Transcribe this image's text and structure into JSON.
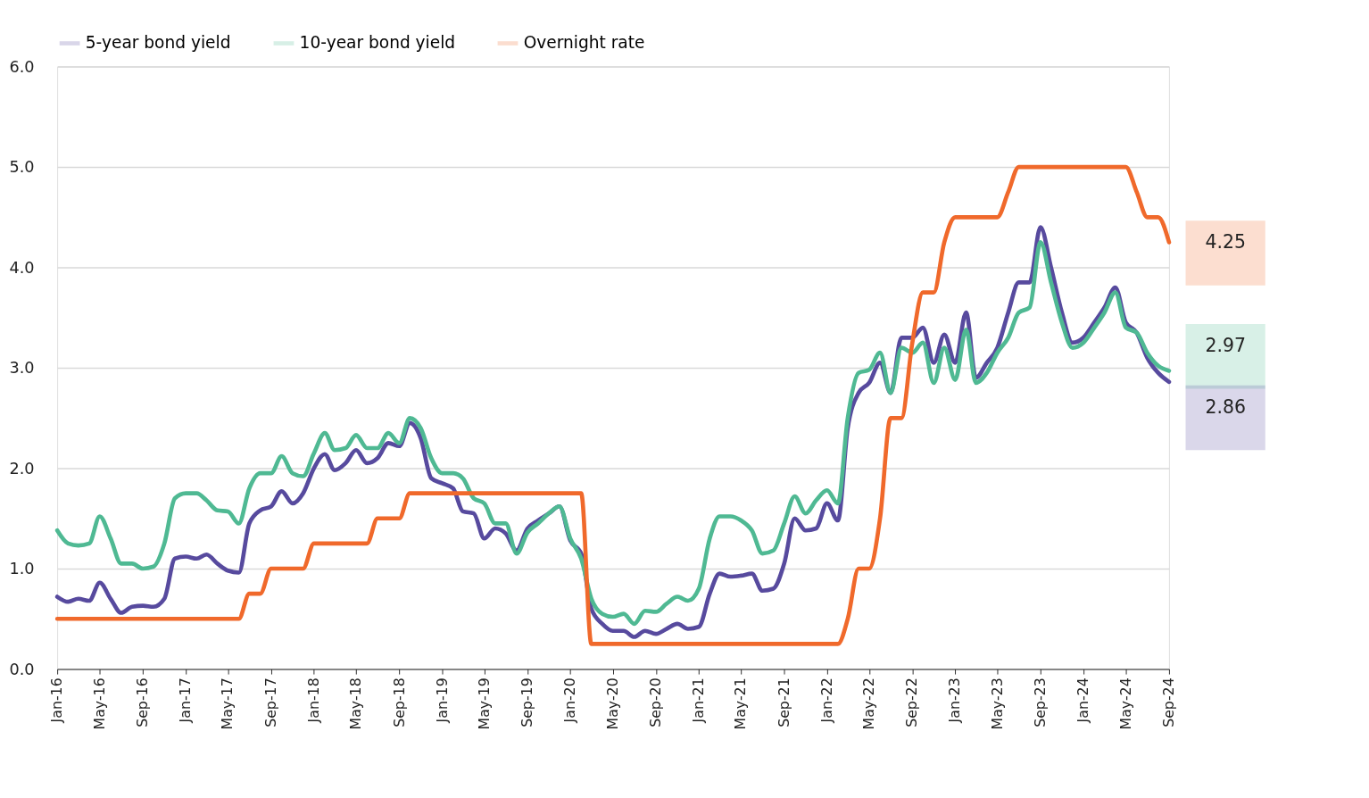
{
  "chart_data": {
    "type": "line",
    "x": [
      "2016-01",
      "2016-02",
      "2016-03",
      "2016-04",
      "2016-05",
      "2016-06",
      "2016-07",
      "2016-08",
      "2016-09",
      "2016-10",
      "2016-11",
      "2016-12",
      "2017-01",
      "2017-02",
      "2017-03",
      "2017-04",
      "2017-05",
      "2017-06",
      "2017-07",
      "2017-08",
      "2017-09",
      "2017-10",
      "2017-11",
      "2017-12",
      "2018-01",
      "2018-02",
      "2018-03",
      "2018-04",
      "2018-05",
      "2018-06",
      "2018-07",
      "2018-08",
      "2018-09",
      "2018-10",
      "2018-11",
      "2018-12",
      "2019-01",
      "2019-02",
      "2019-03",
      "2019-04",
      "2019-05",
      "2019-06",
      "2019-07",
      "2019-08",
      "2019-09",
      "2019-10",
      "2019-11",
      "2019-12",
      "2020-01",
      "2020-02",
      "2020-03",
      "2020-04",
      "2020-05",
      "2020-06",
      "2020-07",
      "2020-08",
      "2020-09",
      "2020-10",
      "2020-11",
      "2020-12",
      "2021-01",
      "2021-02",
      "2021-03",
      "2021-04",
      "2021-05",
      "2021-06",
      "2021-07",
      "2021-08",
      "2021-09",
      "2021-10",
      "2021-11",
      "2021-12",
      "2022-01",
      "2022-02",
      "2022-03",
      "2022-04",
      "2022-05",
      "2022-06",
      "2022-07",
      "2022-08",
      "2022-09",
      "2022-10",
      "2022-11",
      "2022-12",
      "2023-01",
      "2023-02",
      "2023-03",
      "2023-04",
      "2023-05",
      "2023-06",
      "2023-07",
      "2023-08",
      "2023-09",
      "2023-10",
      "2023-11",
      "2023-12",
      "2024-01",
      "2024-02",
      "2024-03",
      "2024-04",
      "2024-05",
      "2024-06",
      "2024-07",
      "2024-08",
      "2024-09"
    ],
    "series": [
      {
        "name": "5-year bond yield",
        "color": "#574a9e",
        "values": [
          0.72,
          0.67,
          0.7,
          0.68,
          0.86,
          0.7,
          0.56,
          0.62,
          0.63,
          0.62,
          0.7,
          1.1,
          1.12,
          1.1,
          1.14,
          1.05,
          0.98,
          0.96,
          1.45,
          1.58,
          1.62,
          1.77,
          1.65,
          1.75,
          2.0,
          2.14,
          1.98,
          2.05,
          2.18,
          2.05,
          2.1,
          2.25,
          2.22,
          2.45,
          2.3,
          1.9,
          1.85,
          1.8,
          1.57,
          1.55,
          1.3,
          1.4,
          1.35,
          1.18,
          1.4,
          1.48,
          1.55,
          1.62,
          1.28,
          1.15,
          0.6,
          0.45,
          0.38,
          0.38,
          0.32,
          0.38,
          0.35,
          0.4,
          0.45,
          0.4,
          0.42,
          0.75,
          0.95,
          0.92,
          0.93,
          0.95,
          0.78,
          0.8,
          1.05,
          1.5,
          1.38,
          1.4,
          1.65,
          1.48,
          2.4,
          2.75,
          2.85,
          3.05,
          2.75,
          3.3,
          3.3,
          3.4,
          3.05,
          3.33,
          3.05,
          3.55,
          2.9,
          3.05,
          3.2,
          3.55,
          3.85,
          3.85,
          4.4,
          4.0,
          3.55,
          3.25,
          3.3,
          3.45,
          3.6,
          3.8,
          3.45,
          3.35,
          3.1,
          2.95,
          2.86
        ]
      },
      {
        "name": "10-year bond yield",
        "color": "#4fb993",
        "values": [
          1.38,
          1.25,
          1.23,
          1.25,
          1.52,
          1.3,
          1.05,
          1.05,
          1.0,
          1.02,
          1.25,
          1.7,
          1.75,
          1.75,
          1.68,
          1.58,
          1.57,
          1.45,
          1.8,
          1.95,
          1.95,
          2.12,
          1.95,
          1.92,
          2.15,
          2.35,
          2.18,
          2.2,
          2.33,
          2.2,
          2.2,
          2.35,
          2.25,
          2.5,
          2.4,
          2.1,
          1.95,
          1.95,
          1.9,
          1.7,
          1.65,
          1.45,
          1.45,
          1.15,
          1.36,
          1.45,
          1.55,
          1.62,
          1.3,
          1.1,
          0.7,
          0.55,
          0.52,
          0.55,
          0.45,
          0.58,
          0.57,
          0.65,
          0.72,
          0.68,
          0.8,
          1.3,
          1.52,
          1.52,
          1.48,
          1.38,
          1.15,
          1.18,
          1.45,
          1.72,
          1.55,
          1.68,
          1.78,
          1.65,
          2.5,
          2.95,
          2.98,
          3.15,
          2.75,
          3.2,
          3.15,
          3.25,
          2.85,
          3.2,
          2.88,
          3.38,
          2.85,
          2.95,
          3.15,
          3.3,
          3.55,
          3.6,
          4.25,
          3.85,
          3.45,
          3.2,
          3.25,
          3.4,
          3.55,
          3.75,
          3.4,
          3.35,
          3.15,
          3.02,
          2.97
        ]
      },
      {
        "name": "Overnight rate",
        "color": "#f0692b",
        "values": [
          0.5,
          0.5,
          0.5,
          0.5,
          0.5,
          0.5,
          0.5,
          0.5,
          0.5,
          0.5,
          0.5,
          0.5,
          0.5,
          0.5,
          0.5,
          0.5,
          0.5,
          0.5,
          0.75,
          0.75,
          1.0,
          1.0,
          1.0,
          1.0,
          1.25,
          1.25,
          1.25,
          1.25,
          1.25,
          1.25,
          1.5,
          1.5,
          1.5,
          1.75,
          1.75,
          1.75,
          1.75,
          1.75,
          1.75,
          1.75,
          1.75,
          1.75,
          1.75,
          1.75,
          1.75,
          1.75,
          1.75,
          1.75,
          1.75,
          1.75,
          0.25,
          0.25,
          0.25,
          0.25,
          0.25,
          0.25,
          0.25,
          0.25,
          0.25,
          0.25,
          0.25,
          0.25,
          0.25,
          0.25,
          0.25,
          0.25,
          0.25,
          0.25,
          0.25,
          0.25,
          0.25,
          0.25,
          0.25,
          0.25,
          0.5,
          1.0,
          1.0,
          1.5,
          2.5,
          2.5,
          3.25,
          3.75,
          3.75,
          4.25,
          4.5,
          4.5,
          4.5,
          4.5,
          4.5,
          4.75,
          5.0,
          5.0,
          5.0,
          5.0,
          5.0,
          5.0,
          5.0,
          5.0,
          5.0,
          5.0,
          5.0,
          4.75,
          4.5,
          4.5,
          4.25
        ]
      }
    ],
    "xlim": [
      "2016-01",
      "2024-09"
    ],
    "xticks": [
      {
        "value": "2016-01",
        "label": "Jan-16"
      },
      {
        "value": "2016-05",
        "label": "May-16"
      },
      {
        "value": "2016-09",
        "label": "Sep-16"
      },
      {
        "value": "2017-01",
        "label": "Jan-17"
      },
      {
        "value": "2017-05",
        "label": "May-17"
      },
      {
        "value": "2017-09",
        "label": "Sep-17"
      },
      {
        "value": "2018-01",
        "label": "Jan-18"
      },
      {
        "value": "2018-05",
        "label": "May-18"
      },
      {
        "value": "2018-09",
        "label": "Sep-18"
      },
      {
        "value": "2019-01",
        "label": "Jan-19"
      },
      {
        "value": "2019-05",
        "label": "May-19"
      },
      {
        "value": "2019-09",
        "label": "Sep-19"
      },
      {
        "value": "2020-01",
        "label": "Jan-20"
      },
      {
        "value": "2020-05",
        "label": "May-20"
      },
      {
        "value": "2020-09",
        "label": "Sep-20"
      },
      {
        "value": "2021-01",
        "label": "Jan-21"
      },
      {
        "value": "2021-05",
        "label": "May-21"
      },
      {
        "value": "2021-09",
        "label": "Sep-21"
      },
      {
        "value": "2022-01",
        "label": "Jan-22"
      },
      {
        "value": "2022-05",
        "label": "May-22"
      },
      {
        "value": "2022-09",
        "label": "Sep-22"
      },
      {
        "value": "2023-01",
        "label": "Jan-23"
      },
      {
        "value": "2023-05",
        "label": "May-23"
      },
      {
        "value": "2023-09",
        "label": "Sep-23"
      },
      {
        "value": "2024-01",
        "label": "Jan-24"
      },
      {
        "value": "2024-05",
        "label": "May-24"
      },
      {
        "value": "2024-09",
        "label": "Sep-24"
      }
    ],
    "ylim": [
      0,
      6
    ],
    "yticks": [
      {
        "value": 0,
        "label": "0.0"
      },
      {
        "value": 1,
        "label": "1.0"
      },
      {
        "value": 2,
        "label": "2.0"
      },
      {
        "value": 3,
        "label": "3.0"
      },
      {
        "value": 4,
        "label": "4.0"
      },
      {
        "value": 5,
        "label": "5.0"
      },
      {
        "value": 6,
        "label": "6.0"
      }
    ],
    "grid": "y",
    "legend": "top",
    "marker": "none",
    "line_style": "solid",
    "annotations": [
      {
        "text": "4.25",
        "x": "2024-09",
        "y": 4.25
      },
      {
        "text": "2.97",
        "x": "2024-09",
        "y": 2.97
      },
      {
        "text": "2.86",
        "x": "2024-09",
        "y": 2.86
      }
    ]
  }
}
